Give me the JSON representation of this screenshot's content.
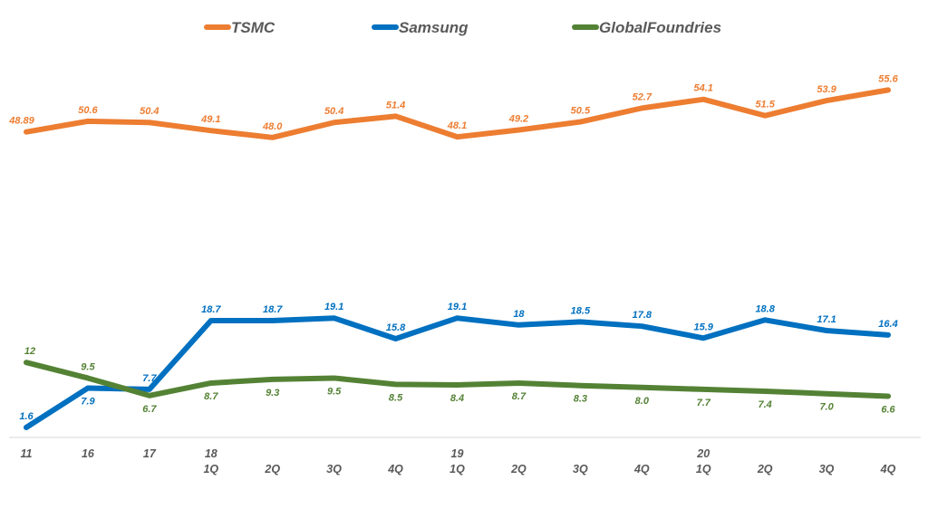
{
  "chart_data": {
    "type": "line",
    "title": "",
    "categories": [
      "11",
      "16",
      "17",
      "18 1Q",
      "2Q",
      "3Q",
      "4Q",
      "19 1Q",
      "2Q",
      "3Q",
      "4Q",
      "20 1Q",
      "2Q",
      "3Q",
      "4Q"
    ],
    "tick_top": [
      "11",
      "16",
      "17",
      "18",
      "",
      "",
      "",
      "19",
      "",
      "",
      "",
      "20",
      "",
      "",
      ""
    ],
    "tick_bottom": [
      "",
      "",
      "",
      "1Q",
      "2Q",
      "3Q",
      "4Q",
      "1Q",
      "2Q",
      "3Q",
      "4Q",
      "1Q",
      "2Q",
      "3Q",
      "4Q"
    ],
    "series": [
      {
        "name": "TSMC",
        "color": "#ED7D31",
        "values": [
          48.89,
          50.6,
          50.4,
          49.1,
          48.0,
          50.4,
          51.4,
          48.1,
          49.2,
          50.5,
          52.7,
          54.1,
          51.5,
          53.9,
          55.6
        ],
        "labels": [
          "48.89",
          "50.6",
          "50.4",
          "49.1",
          "48.0",
          "50.4",
          "51.4",
          "48.1",
          "49.2",
          "50.5",
          "52.7",
          "54.1",
          "51.5",
          "53.9",
          "55.6"
        ]
      },
      {
        "name": "Samsung",
        "color": "#0070C0",
        "values": [
          1.6,
          7.9,
          7.7,
          18.7,
          18.7,
          19.1,
          15.8,
          19.1,
          18,
          18.5,
          17.8,
          15.9,
          18.8,
          17.1,
          16.4
        ],
        "labels": [
          "1.6",
          "7.9",
          "7.7",
          "18.7",
          "18.7",
          "19.1",
          "15.8",
          "19.1",
          "18",
          "18.5",
          "17.8",
          "15.9",
          "18.8",
          "17.1",
          "16.4"
        ]
      },
      {
        "name": "GlobalFoundries",
        "color": "#548235",
        "values": [
          12,
          9.5,
          6.7,
          8.7,
          9.3,
          9.5,
          8.5,
          8.4,
          8.7,
          8.3,
          8.0,
          7.7,
          7.4,
          7.0,
          6.6
        ],
        "labels": [
          "12",
          "9.5",
          "6.7",
          "8.7",
          "9.3",
          "9.5",
          "8.5",
          "8.4",
          "8.7",
          "8.3",
          "8.0",
          "7.7",
          "7.4",
          "7.0",
          "6.6"
        ]
      }
    ],
    "xlabel": "",
    "ylabel": "",
    "ylim": [
      0,
      70
    ],
    "grid": false,
    "legend": "top-center"
  }
}
